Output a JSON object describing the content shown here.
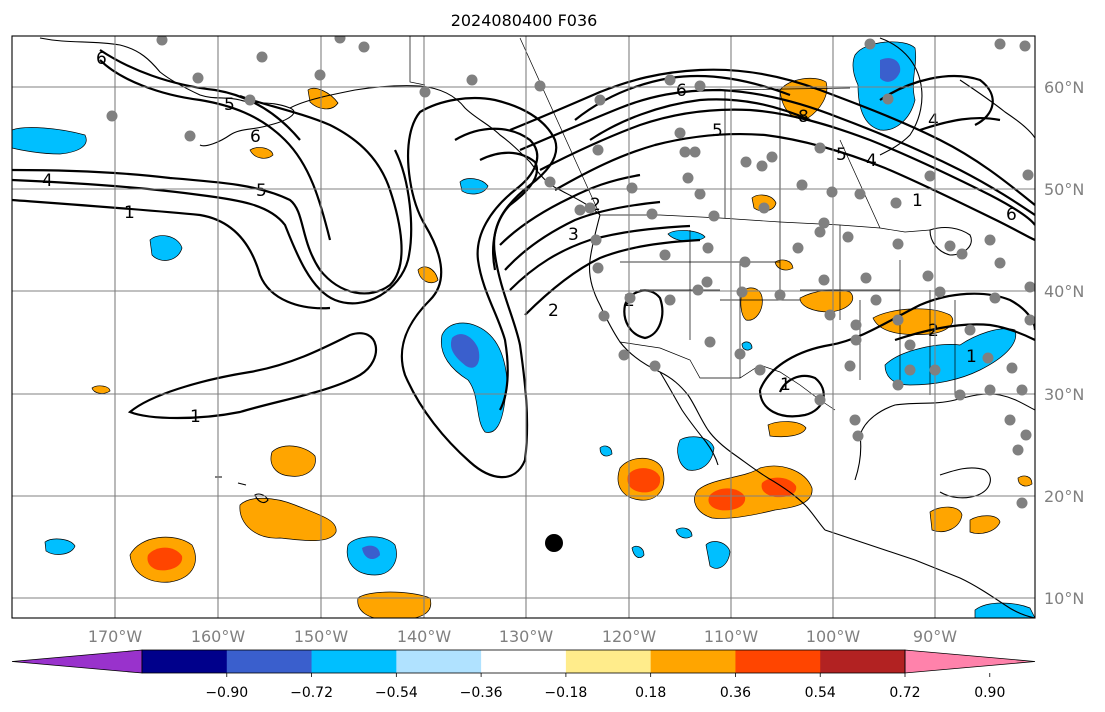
{
  "title": "2024080400 F036",
  "lon_labels": [
    "170°W",
    "160°W",
    "150°W",
    "140°W",
    "130°W",
    "120°W",
    "110°W",
    "100°W",
    "90°W"
  ],
  "lat_labels": [
    "60°N",
    "50°N",
    "40°N",
    "30°N",
    "20°N",
    "10°N"
  ],
  "contour_labels": [
    "6",
    "5",
    "4",
    "1",
    "5",
    "6",
    "2",
    "3",
    "2",
    "1",
    "1",
    "6",
    "5",
    "4",
    "8",
    "5",
    "4",
    "1",
    "6",
    "1",
    "2",
    "2"
  ],
  "colorbar": {
    "ticks": [
      "−0.90",
      "−0.72",
      "−0.54",
      "−0.36",
      "−0.18",
      "0.18",
      "0.36",
      "0.54",
      "0.72",
      "0.90"
    ],
    "colors": [
      "#9932cc",
      "#00008b",
      "#3a5fcd",
      "#00bfff",
      "#b0e2ff",
      "#ffffff",
      "#ffec8b",
      "#ffa500",
      "#ff4500",
      "#b22222",
      "#ff82ab"
    ]
  },
  "colors": {
    "grid": "#808080",
    "coast": "#000000",
    "station": "#808080"
  }
}
